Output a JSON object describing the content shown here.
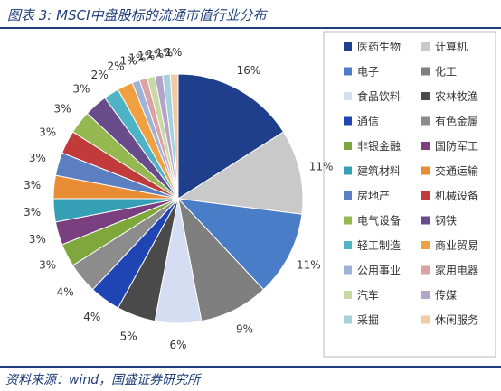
{
  "title": "图表 3: MSCI中盘股标的流通市值行业分布",
  "source": "资料来源：wind，国盛证券研究所",
  "chart_data": {
    "type": "pie",
    "categories": [
      "医药生物",
      "计算机",
      "电子",
      "化工",
      "食品饮料",
      "农林牧渔",
      "通信",
      "有色金属",
      "非银金融",
      "国防军工",
      "建筑材料",
      "交通运输",
      "房地产",
      "机械设备",
      "电气设备",
      "钢铁",
      "轻工制造",
      "商业贸易",
      "公用事业",
      "家用电器",
      "汽车",
      "传媒",
      "采掘",
      "休闲服务"
    ],
    "values": [
      16,
      11,
      11,
      9,
      6,
      5,
      4,
      4,
      3,
      3,
      3,
      3,
      3,
      3,
      3,
      3,
      2,
      2,
      1,
      1,
      1,
      1,
      1,
      1
    ],
    "labels": [
      "16%",
      "11%",
      "11%",
      "9%",
      "6%",
      "5%",
      "4%",
      "4%",
      "3%",
      "3%",
      "3%",
      "3%",
      "3%",
      "3%",
      "3%",
      "3%",
      "2%",
      "2%",
      "1%",
      "1%",
      "1%",
      "1%",
      "1%",
      "1%"
    ],
    "colors": [
      "#1f3f8c",
      "#c9c9c9",
      "#4a7dc8",
      "#7f7f7f",
      "#d4ddf2",
      "#4a4a4a",
      "#1f45b5",
      "#8c8c8c",
      "#7ea83c",
      "#7a3f7f",
      "#35a0b5",
      "#e88c35",
      "#5b7fc0",
      "#c23b3b",
      "#95b850",
      "#684c8c",
      "#4fb3c6",
      "#f0a040",
      "#9fb3d9",
      "#d9a3a3",
      "#c9d9a3",
      "#b3a3c9",
      "#a3d1dc",
      "#f5c9a3"
    ],
    "legend_position": "right"
  }
}
